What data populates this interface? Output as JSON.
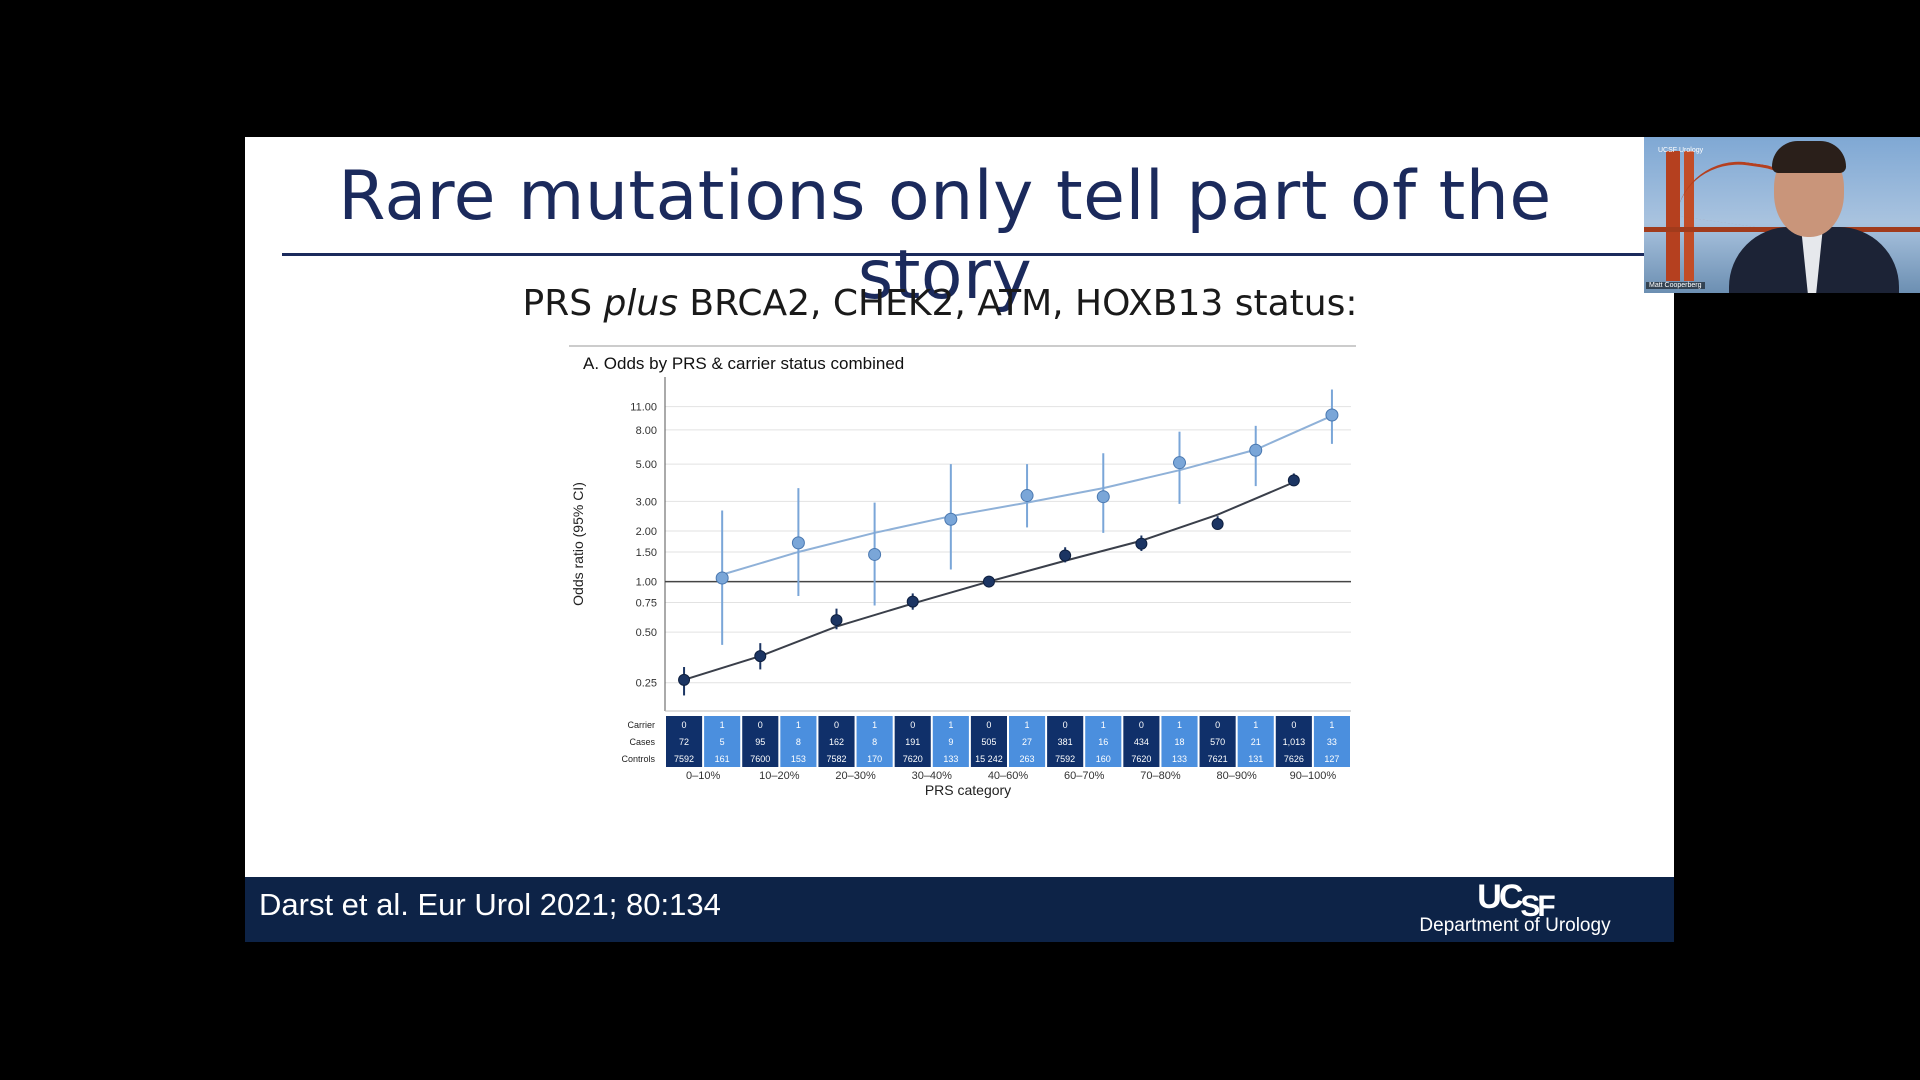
{
  "slide": {
    "title": "Rare mutations only tell part of the story",
    "subtitle_prefix": "PRS ",
    "subtitle_em": "plus",
    "subtitle_suffix": " BRCA2, CHEK2, ATM, HOXB13 status:",
    "citation": "Darst et al. Eur Urol 2021; 80:134",
    "logo_text_main": "UC",
    "logo_text_sf": "SF",
    "department": "Department of Urology"
  },
  "video": {
    "participant_name": "Matt Cooperberg",
    "corner_label": "UCSF Urology"
  },
  "colors": {
    "navy": "#1b2a5c",
    "footer": "#0d2347",
    "carrier_series": "#7aa6d8",
    "noncarrier_series": "#1c3563",
    "table_dark": "#10306a",
    "table_light": "#4b8fde"
  },
  "chart_data": {
    "type": "scatter",
    "title": "A. Odds by PRS & carrier status combined",
    "xlabel": "PRS category",
    "ylabel": "Odds ratio (95% CI)",
    "y_scale": "log",
    "ylim": [
      0.2,
      14
    ],
    "yticks": [
      0.25,
      0.5,
      0.75,
      1.0,
      1.5,
      2.0,
      3.0,
      5.0,
      8.0,
      11.0
    ],
    "ytick_labels": [
      "0.25",
      "0.50",
      "0.75",
      "1.00",
      "1.50",
      "2.00",
      "3.00",
      "5.00",
      "8.00",
      "11.00"
    ],
    "reference_line": 1.0,
    "grid": true,
    "categories": [
      "0–10%",
      "10–20%",
      "20–30%",
      "30–40%",
      "40–60%",
      "60–70%",
      "70–80%",
      "80–90%",
      "90–100%"
    ],
    "series": [
      {
        "group": "noncarrier",
        "values": [
          0.26,
          0.36,
          0.59,
          0.76,
          1.0,
          1.43,
          1.68,
          2.2,
          4.0
        ],
        "ci_low": [
          0.21,
          0.3,
          0.52,
          0.68,
          1.0,
          1.3,
          1.52,
          2.05,
          3.7
        ],
        "ci_high": [
          0.31,
          0.43,
          0.69,
          0.85,
          1.0,
          1.6,
          1.88,
          2.45,
          4.4
        ],
        "trend": [
          0.26,
          0.36,
          0.54,
          0.74,
          1.0,
          1.33,
          1.75,
          2.5,
          3.9
        ]
      },
      {
        "group": "carrier",
        "values": [
          1.05,
          1.7,
          1.45,
          2.35,
          3.25,
          3.2,
          5.1,
          6.05,
          9.8
        ],
        "ci_low": [
          0.42,
          0.82,
          0.72,
          1.18,
          2.1,
          1.95,
          2.9,
          3.7,
          6.6
        ],
        "ci_high": [
          2.65,
          3.6,
          2.95,
          5.0,
          5.0,
          5.8,
          7.8,
          8.45,
          13.9
        ],
        "trend": [
          1.1,
          1.5,
          1.95,
          2.45,
          2.95,
          3.6,
          4.6,
          6.1,
          9.7
        ]
      }
    ],
    "table": {
      "row_labels": [
        "Carrier",
        "Cases",
        "Controls"
      ],
      "carrier": [
        "0",
        "1"
      ],
      "cases": [
        [
          "72",
          "5"
        ],
        [
          "95",
          "8"
        ],
        [
          "162",
          "8"
        ],
        [
          "191",
          "9"
        ],
        [
          "505",
          "27"
        ],
        [
          "381",
          "16"
        ],
        [
          "434",
          "18"
        ],
        [
          "570",
          "21"
        ],
        [
          "1,013",
          "33"
        ]
      ],
      "controls": [
        [
          "7592",
          "161"
        ],
        [
          "7600",
          "153"
        ],
        [
          "7582",
          "170"
        ],
        [
          "7620",
          "133"
        ],
        [
          "15 242",
          "263"
        ],
        [
          "7592",
          "160"
        ],
        [
          "7620",
          "133"
        ],
        [
          "7621",
          "131"
        ],
        [
          "7626",
          "127"
        ]
      ]
    }
  }
}
